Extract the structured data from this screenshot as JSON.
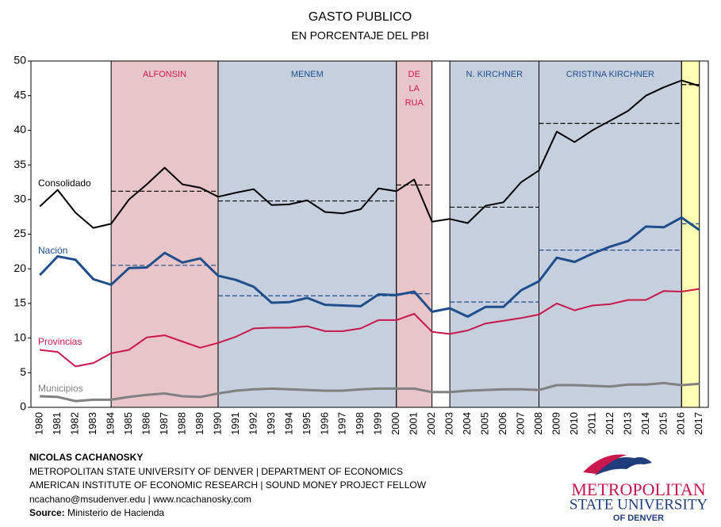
{
  "chart_data": {
    "type": "line",
    "title": "GASTO PUBLICO",
    "subtitle": "EN PORCENTAJE DEL PBI",
    "categories": [
      "1980",
      "1981",
      "1982",
      "1983",
      "1984",
      "1985",
      "1986",
      "1987",
      "1988",
      "1989",
      "1990",
      "1991",
      "1992",
      "1993",
      "1994",
      "1995",
      "1996",
      "1997",
      "1998",
      "1999",
      "2000",
      "2001",
      "2002",
      "2003",
      "2004",
      "2005",
      "2006",
      "2007",
      "2008",
      "2009",
      "2010",
      "2011",
      "2012",
      "2013",
      "2014",
      "2015",
      "2016",
      "2017"
    ],
    "ylim": [
      0,
      50
    ],
    "yticks": [
      0,
      5,
      10,
      15,
      20,
      25,
      30,
      35,
      40,
      45,
      50
    ],
    "series": [
      {
        "name": "Consolidado",
        "color": "#000000",
        "values": [
          29.0,
          31.4,
          28.1,
          25.9,
          26.5,
          30.0,
          32.2,
          34.6,
          32.2,
          31.7,
          30.4,
          31.0,
          31.5,
          29.2,
          29.3,
          29.9,
          28.2,
          28.0,
          28.6,
          31.6,
          31.2,
          32.9,
          26.8,
          27.2,
          26.6,
          29.1,
          29.6,
          32.5,
          34.2,
          39.8,
          38.3,
          40.0,
          41.4,
          42.8,
          45.0,
          46.2,
          47.2,
          46.4
        ],
        "period_averages": [
          31.2,
          29.8,
          32.1,
          28.9,
          41.0,
          46.6
        ]
      },
      {
        "name": "Nación",
        "color": "#1f4e8c",
        "values": [
          19.1,
          21.8,
          21.3,
          18.5,
          17.7,
          20.1,
          20.2,
          22.3,
          20.9,
          21.5,
          19.0,
          18.4,
          17.4,
          15.1,
          15.2,
          15.8,
          14.8,
          14.7,
          14.6,
          16.3,
          16.2,
          16.7,
          13.8,
          14.3,
          13.1,
          14.5,
          14.5,
          16.9,
          18.2,
          21.6,
          21.0,
          22.2,
          23.2,
          24.0,
          26.1,
          26.0,
          27.4,
          25.6
        ],
        "period_averages": [
          20.5,
          16.1,
          16.4,
          15.2,
          22.7,
          26.5
        ]
      },
      {
        "name": "Provincias",
        "color": "#c8174a",
        "values": [
          8.3,
          8.0,
          5.9,
          6.4,
          7.8,
          8.3,
          10.1,
          10.4,
          9.5,
          8.6,
          9.3,
          10.2,
          11.4,
          11.5,
          11.5,
          11.7,
          11.0,
          11.0,
          11.4,
          12.6,
          12.6,
          13.5,
          10.9,
          10.6,
          11.1,
          12.1,
          12.5,
          12.9,
          13.4,
          15.0,
          14.0,
          14.7,
          14.9,
          15.5,
          15.5,
          16.8,
          16.7,
          17.1
        ]
      },
      {
        "name": "Municipios",
        "color": "#808080",
        "values": [
          1.6,
          1.5,
          0.9,
          1.1,
          1.1,
          1.5,
          1.8,
          2.0,
          1.6,
          1.5,
          2.0,
          2.4,
          2.6,
          2.7,
          2.6,
          2.5,
          2.4,
          2.4,
          2.6,
          2.7,
          2.7,
          2.7,
          2.2,
          2.2,
          2.4,
          2.5,
          2.6,
          2.6,
          2.5,
          3.2,
          3.2,
          3.1,
          3.0,
          3.3,
          3.3,
          3.5,
          3.2,
          3.4
        ]
      }
    ],
    "periods": [
      {
        "name": [
          "ALFONSIN"
        ],
        "start": 1984,
        "end": 1990,
        "color": "#e8c5c9",
        "label_color": "#d4194c"
      },
      {
        "name": [
          "MENEM"
        ],
        "start": 1990,
        "end": 2000,
        "color": "#c5cfde",
        "label_color": "#1f4e8c"
      },
      {
        "name": [
          "DE",
          "LA",
          "RUA"
        ],
        "start": 2000,
        "end": 2002,
        "color": "#e8c5c9",
        "label_color": "#d4194c"
      },
      {
        "name": [
          "N. KIRCHNER"
        ],
        "start": 2003,
        "end": 2008,
        "color": "#c5cfde",
        "label_color": "#1f4e8c"
      },
      {
        "name": [
          "CRISTINA KIRCHNER"
        ],
        "start": 2008,
        "end": 2016,
        "color": "#c5cfde",
        "label_color": "#1f4e8c"
      },
      {
        "start": 2016,
        "end": 2017,
        "color": "#ffffb3"
      }
    ]
  },
  "footer": {
    "author": "NICOLAS CACHANOSKY",
    "line1": "METROPOLITAN STATE UNIVERSITY OF DENVER | DEPARTMENT OF ECONOMICS",
    "line2": "AMERICAN INSTITUTE OF ECONOMIC RESEARCH | SOUND MONEY PROJECT FELLOW",
    "line3": "ncachano@msudenver.edu  | www.ncachanosky.com",
    "source_label": "Source:",
    "source": "Ministerio de Hacienda"
  },
  "logo": {
    "line1": "METROPOLITAN",
    "line2": "STATE UNIVERSITY",
    "line3": "OF DENVER"
  }
}
